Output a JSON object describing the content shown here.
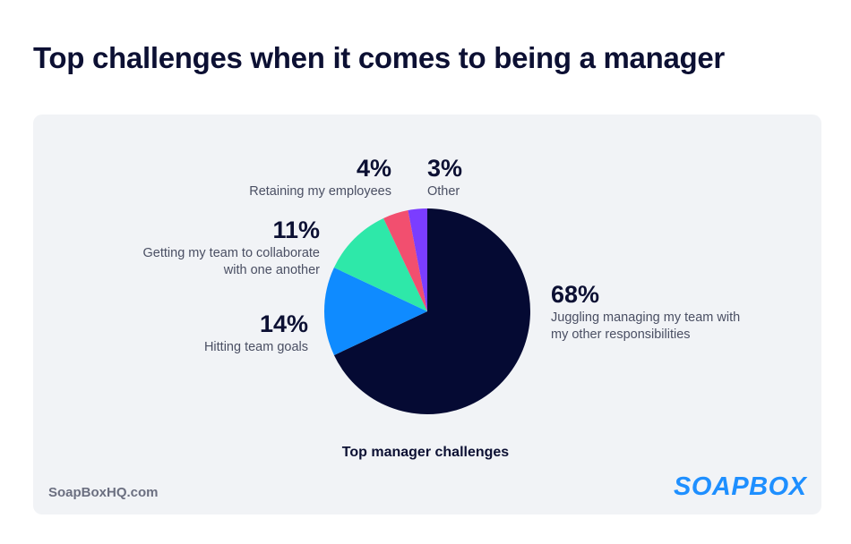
{
  "title": "Top challenges when it comes to being a manager",
  "source": "SoapBoxHQ.com",
  "logo": "SOAPBOX",
  "chart_data": {
    "type": "pie",
    "title": "Top manager challenges",
    "categories": [
      "Juggling managing my team with my other responsibilities",
      "Hitting team goals",
      "Getting my team to collaborate with one another",
      "Retaining my employees",
      "Other"
    ],
    "values": [
      68,
      14,
      11,
      4,
      3
    ],
    "value_labels": [
      "68%",
      "14%",
      "11%",
      "4%",
      "3%"
    ],
    "colors": [
      "#050a33",
      "#0f8bff",
      "#2ee8a9",
      "#f24f6f",
      "#7b3dff"
    ]
  }
}
